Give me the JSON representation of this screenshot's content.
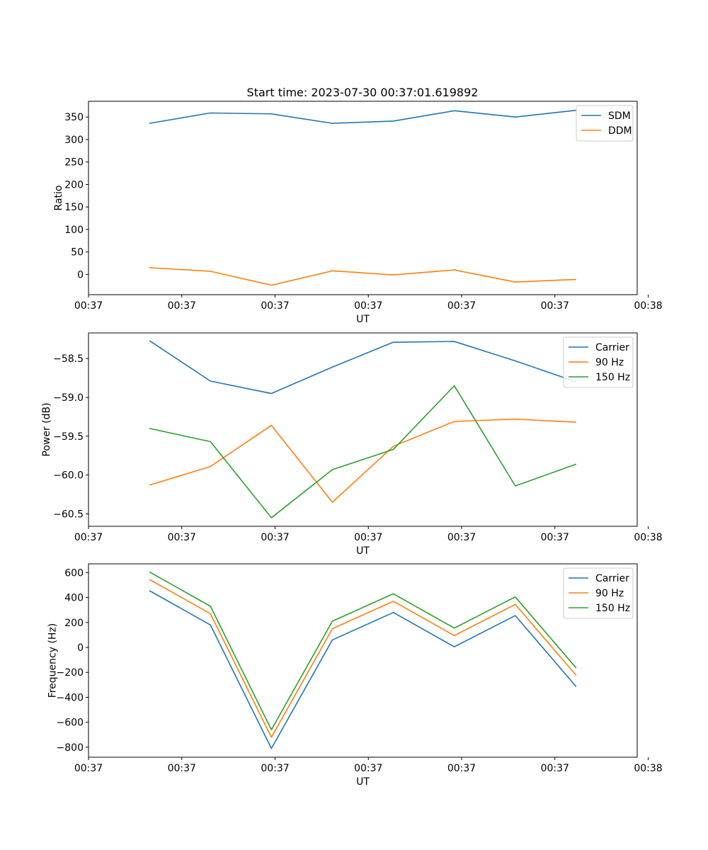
{
  "figure_title": "Start time: 2023-07-30 00:37:01.619892",
  "colors": {
    "blue": "#1f77b4",
    "orange": "#ff7f0e",
    "green": "#2ca02c"
  },
  "chart_data": [
    {
      "type": "line",
      "title": "Start time: 2023-07-30 00:37:01.619892",
      "xlabel": "UT",
      "ylabel": "Ratio",
      "x": [
        1,
        2,
        3,
        4,
        5,
        6,
        7,
        8
      ],
      "xlim": [
        0,
        9
      ],
      "x_ticks": [
        0,
        1.53,
        3.06,
        4.59,
        6.12,
        7.65,
        9.18
      ],
      "x_tick_labels": [
        "00:37",
        "00:37",
        "00:37",
        "00:37",
        "00:37",
        "00:37",
        "00:38"
      ],
      "ylim": [
        -45,
        385
      ],
      "y_ticks": [
        0,
        50,
        100,
        150,
        200,
        250,
        300,
        350
      ],
      "y_tick_labels": [
        "0",
        "50",
        "100",
        "150",
        "200",
        "250",
        "300",
        "350"
      ],
      "legend_position": "top-right",
      "series": [
        {
          "name": "SDM",
          "color": "#1f77b4",
          "values": [
            336,
            359,
            357,
            336,
            341,
            364,
            350,
            365
          ]
        },
        {
          "name": "DDM",
          "color": "#ff7f0e",
          "values": [
            15,
            7,
            -24,
            8,
            -1,
            10,
            -17,
            -11
          ]
        }
      ]
    },
    {
      "type": "line",
      "title": "",
      "xlabel": "UT",
      "ylabel": "Power (dB)",
      "x": [
        1,
        2,
        3,
        4,
        5,
        6,
        7,
        8
      ],
      "xlim": [
        0,
        9
      ],
      "x_ticks": [
        0,
        1.53,
        3.06,
        4.59,
        6.12,
        7.65,
        9.18
      ],
      "x_tick_labels": [
        "00:37",
        "00:37",
        "00:37",
        "00:37",
        "00:37",
        "00:37",
        "00:38"
      ],
      "ylim": [
        -60.66,
        -58.17
      ],
      "y_ticks": [
        -60.5,
        -60.0,
        -59.5,
        -59.0,
        -58.5
      ],
      "y_tick_labels": [
        "−60.5",
        "−60.0",
        "−59.5",
        "−59.0",
        "−58.5"
      ],
      "legend_position": "top-right",
      "series": [
        {
          "name": "Carrier",
          "color": "#1f77b4",
          "values": [
            -58.27,
            -58.79,
            -58.95,
            -58.61,
            -58.29,
            -58.28,
            -58.53,
            -58.8
          ]
        },
        {
          "name": "90 Hz",
          "color": "#ff7f0e",
          "values": [
            -60.13,
            -59.89,
            -59.36,
            -60.35,
            -59.63,
            -59.31,
            -59.28,
            -59.32
          ]
        },
        {
          "name": "150 Hz",
          "color": "#2ca02c",
          "values": [
            -59.4,
            -59.57,
            -60.55,
            -59.93,
            -59.67,
            -58.85,
            -60.14,
            -59.86
          ]
        }
      ]
    },
    {
      "type": "line",
      "title": "",
      "xlabel": "UT",
      "ylabel": "Frequency (Hz)",
      "x": [
        1,
        2,
        3,
        4,
        5,
        6,
        7,
        8
      ],
      "xlim": [
        0,
        9
      ],
      "x_ticks": [
        0,
        1.53,
        3.06,
        4.59,
        6.12,
        7.65,
        9.18
      ],
      "x_tick_labels": [
        "00:37",
        "00:37",
        "00:37",
        "00:37",
        "00:37",
        "00:37",
        "00:38"
      ],
      "ylim": [
        -880,
        670
      ],
      "y_ticks": [
        -800,
        -600,
        -400,
        -200,
        0,
        200,
        400,
        600
      ],
      "y_tick_labels": [
        "−800",
        "−600",
        "−400",
        "−200",
        "0",
        "200",
        "400",
        "600"
      ],
      "legend_position": "top-right",
      "series": [
        {
          "name": "Carrier",
          "color": "#1f77b4",
          "values": [
            455,
            180,
            -810,
            60,
            280,
            5,
            255,
            -315
          ]
        },
        {
          "name": "90 Hz",
          "color": "#ff7f0e",
          "values": [
            545,
            270,
            -720,
            150,
            370,
            95,
            345,
            -225
          ]
        },
        {
          "name": "150 Hz",
          "color": "#2ca02c",
          "values": [
            605,
            330,
            -660,
            210,
            430,
            155,
            405,
            -165
          ]
        }
      ]
    }
  ]
}
